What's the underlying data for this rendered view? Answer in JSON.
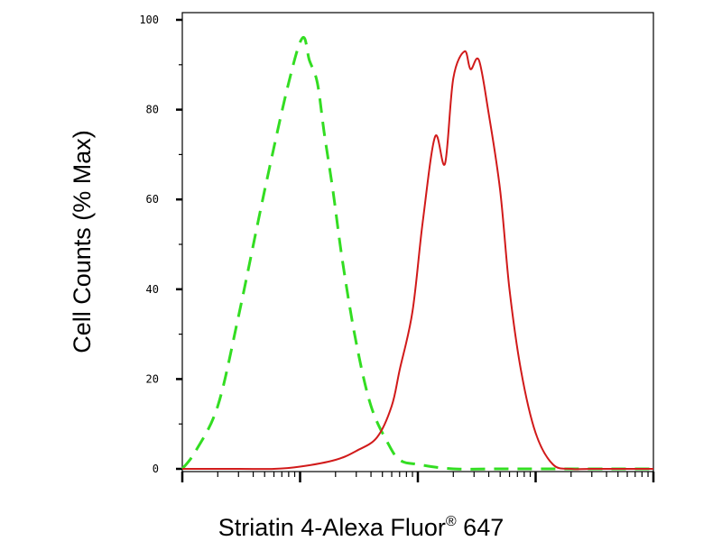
{
  "chart_data": {
    "type": "line",
    "title": "",
    "xlabel_main": "Striatin 4-Alexa Fluor",
    "xlabel_sup": "®",
    "xlabel_tail": " 647",
    "ylabel": "Cell Counts (% Max)",
    "x_scale": "log",
    "xlim": [
      0.1,
      1000
    ],
    "ylim": [
      0,
      100
    ],
    "yticks": [
      0,
      20,
      40,
      60,
      80,
      100
    ],
    "ytick_labels": [
      "0",
      "20",
      "40",
      "60",
      "80",
      "100"
    ],
    "grid": false,
    "legend": "none",
    "series": [
      {
        "color": "#33dd22",
        "dash": "dashed",
        "x": [
          0.1,
          0.13,
          0.2,
          0.3,
          0.5,
          0.8,
          1.05,
          1.2,
          1.4,
          1.6,
          1.9,
          2.3,
          3,
          4,
          5.5,
          7,
          10,
          20,
          50,
          100,
          1000
        ],
        "y": [
          0,
          4,
          14,
          34,
          62,
          86,
          96,
          91,
          86,
          75,
          62,
          46,
          28,
          14,
          6,
          2,
          1,
          0,
          0,
          0,
          0
        ]
      },
      {
        "color": "#d11a1a",
        "dash": "solid",
        "x": [
          0.1,
          0.3,
          0.6,
          1,
          2,
          3,
          4.5,
          6,
          7,
          9,
          11,
          14,
          17,
          20,
          25,
          28,
          33,
          40,
          50,
          60,
          75,
          100,
          140,
          200,
          300,
          1000
        ],
        "y": [
          0,
          0,
          0,
          0.5,
          2,
          4,
          7,
          14,
          22,
          35,
          55,
          74,
          68,
          87,
          93,
          89,
          91,
          79,
          62,
          40,
          22,
          8,
          1,
          0,
          0,
          0
        ]
      }
    ]
  }
}
